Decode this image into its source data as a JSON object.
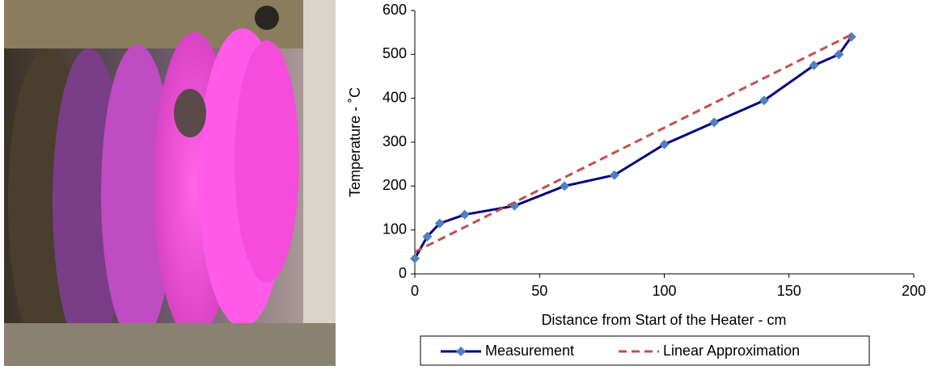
{
  "chart_data": {
    "type": "line",
    "x_label": "Distance from Start of the Heater - cm",
    "y_label": "Temperature - ˚C",
    "xlim": [
      0,
      200
    ],
    "xticks": [
      0,
      50,
      100,
      150,
      200
    ],
    "ylim": [
      0,
      600
    ],
    "yticks": [
      0,
      100,
      200,
      300,
      400,
      500,
      600
    ],
    "legend": "bottom",
    "series": [
      {
        "name": "Measurement",
        "color": "#000080",
        "marker_color": "#4f81bd",
        "dashed": false,
        "x": [
          0,
          5,
          10,
          20,
          40,
          60,
          80,
          100,
          120,
          140,
          160,
          170,
          175
        ],
        "values": [
          35,
          85,
          115,
          135,
          155,
          200,
          225,
          295,
          345,
          395,
          475,
          500,
          540
        ]
      },
      {
        "name": "Linear Approximation",
        "color": "#c0504d",
        "dashed": true,
        "x": [
          0,
          175
        ],
        "values": [
          50,
          545
        ]
      }
    ]
  }
}
